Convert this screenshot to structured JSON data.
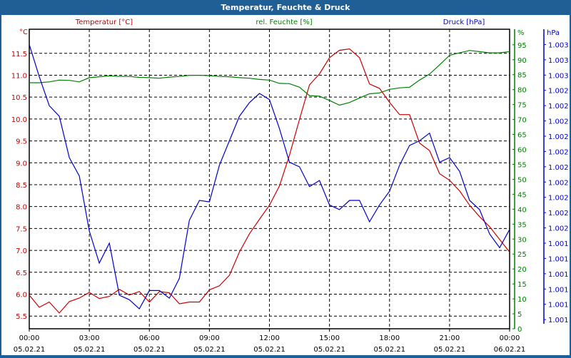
{
  "window": {
    "title": "Temperatur, Feuchte & Druck"
  },
  "chart_data": {
    "type": "line",
    "title": "Temperatur, Feuchte & Druck",
    "x": [
      "00:00",
      "00:30",
      "01:00",
      "01:30",
      "02:00",
      "02:30",
      "03:00",
      "03:30",
      "04:00",
      "04:30",
      "05:00",
      "05:30",
      "06:00",
      "06:30",
      "07:00",
      "07:30",
      "08:00",
      "08:30",
      "09:00",
      "09:30",
      "10:00",
      "10:30",
      "11:00",
      "11:30",
      "12:00",
      "12:30",
      "13:00",
      "13:30",
      "14:00",
      "14:30",
      "15:00",
      "15:30",
      "16:00",
      "16:30",
      "17:00",
      "17:30",
      "18:00",
      "18:30",
      "19:00",
      "19:30",
      "20:00",
      "20:30",
      "21:00",
      "21:30",
      "22:00",
      "22:30",
      "23:00",
      "23:30",
      "24:00"
    ],
    "x_hours_range": [
      0,
      24
    ],
    "x_ticks": [
      {
        "time": "00:00",
        "date": "05.02.21"
      },
      {
        "time": "03:00",
        "date": "05.02.21"
      },
      {
        "time": "06:00",
        "date": "05.02.21"
      },
      {
        "time": "09:00",
        "date": "05.02.21"
      },
      {
        "time": "12:00",
        "date": "05.02.21"
      },
      {
        "time": "15:00",
        "date": "05.02.21"
      },
      {
        "time": "18:00",
        "date": "05.02.21"
      },
      {
        "time": "21:00",
        "date": "05.02.21"
      },
      {
        "time": "00:00",
        "date": "06.02.21"
      }
    ],
    "grid": true,
    "series": [
      {
        "name": "Temperatur [°C]",
        "axis": "temp",
        "color": "#cc0000",
        "values": [
          5.98,
          5.7,
          5.82,
          5.57,
          5.83,
          5.91,
          6.04,
          5.9,
          5.95,
          6.11,
          5.98,
          6.06,
          5.82,
          6.06,
          6.03,
          5.78,
          5.82,
          5.82,
          6.1,
          6.19,
          6.43,
          6.96,
          7.38,
          7.71,
          8.03,
          8.47,
          9.17,
          9.99,
          10.78,
          11.03,
          11.4,
          11.57,
          11.6,
          11.4,
          10.8,
          10.7,
          10.38,
          10.1,
          10.1,
          9.45,
          9.28,
          8.75,
          8.6,
          8.36,
          8.03,
          7.77,
          7.54,
          7.25,
          6.96
        ]
      },
      {
        "name": "rel. Feuchte [%]",
        "axis": "hum",
        "color": "#008000",
        "values": [
          82.3,
          82.3,
          82.6,
          83.2,
          83.1,
          82.6,
          84.0,
          84.3,
          84.6,
          84.4,
          84.4,
          84.1,
          84.0,
          83.8,
          84.2,
          84.4,
          84.8,
          84.8,
          84.7,
          84.4,
          84.3,
          84.0,
          83.8,
          83.4,
          83.2,
          82.1,
          82.0,
          80.8,
          78.0,
          77.8,
          76.4,
          74.8,
          75.7,
          77.2,
          78.6,
          78.9,
          80.1,
          80.6,
          80.8,
          83.2,
          85.2,
          88.3,
          91.5,
          92.3,
          93.1,
          92.7,
          92.3,
          92.3,
          92.7
        ]
      },
      {
        "name": "Druck [hPa]",
        "axis": "press",
        "color": "#0000cc",
        "values": [
          1002.75,
          1002.54,
          1002.35,
          1002.28,
          1002.01,
          1001.89,
          1001.53,
          1001.32,
          1001.45,
          1001.11,
          1001.08,
          1001.02,
          1001.14,
          1001.14,
          1001.09,
          1001.22,
          1001.6,
          1001.73,
          1001.72,
          1001.96,
          1002.12,
          1002.28,
          1002.37,
          1002.43,
          1002.39,
          1002.2,
          1001.98,
          1001.95,
          1001.82,
          1001.86,
          1001.7,
          1001.67,
          1001.73,
          1001.73,
          1001.59,
          1001.7,
          1001.79,
          1001.96,
          1002.09,
          1002.12,
          1002.17,
          1001.98,
          1002.01,
          1001.92,
          1001.73,
          1001.67,
          1001.51,
          1001.42,
          1001.54
        ]
      }
    ],
    "axes": {
      "temp": {
        "unit": "°C",
        "legend": "Temperatur [°C]",
        "color": "#c00000",
        "ylim": [
          5.21,
          12.05
        ],
        "ticks": [
          5.5,
          6.0,
          6.5,
          7.0,
          7.5,
          8.0,
          8.5,
          9.0,
          9.5,
          10.0,
          10.5,
          11.0,
          11.5
        ],
        "tick_labels": [
          "5.5",
          "6.0",
          "6.5",
          "7.0",
          "7.5",
          "8.0",
          "8.5",
          "9.0",
          "9.5",
          "10.0",
          "10.5",
          "11.0",
          "11.5"
        ]
      },
      "hum": {
        "unit": "%",
        "legend": "rel. Feuchte [%]",
        "color": "#008000",
        "ylim": [
          0,
          100.2
        ],
        "ticks": [
          0,
          5,
          10,
          15,
          20,
          25,
          30,
          35,
          40,
          45,
          50,
          55,
          60,
          65,
          70,
          75,
          80,
          85,
          90,
          95
        ],
        "tick_labels": [
          "0",
          "5",
          "10",
          "15",
          "20",
          "25",
          "30",
          "35",
          "40",
          "45",
          "50",
          "55",
          "60",
          "65",
          "70",
          "75",
          "80",
          "85",
          "90",
          "95"
        ]
      },
      "press": {
        "unit": "hPa",
        "legend": "Druck [hPa]",
        "color": "#0000cc",
        "ylim": [
          1000.89,
          1002.85
        ],
        "ticks": [
          1000.95,
          1001.05,
          1001.15,
          1001.25,
          1001.35,
          1001.45,
          1001.55,
          1001.65,
          1001.75,
          1001.85,
          1001.95,
          1002.05,
          1002.15,
          1002.25,
          1002.35,
          1002.45,
          1002.55,
          1002.65,
          1002.75
        ],
        "tick_labels": [
          "1.001",
          "1.001",
          "1.001",
          "1.001",
          "1.001",
          "1.001",
          "1.002",
          "1.002",
          "1.002",
          "1.002",
          "1.002",
          "1.002",
          "1.002",
          "1.002",
          "1.002",
          "1.002",
          "1.003",
          "1.003",
          "1.003"
        ]
      }
    }
  }
}
